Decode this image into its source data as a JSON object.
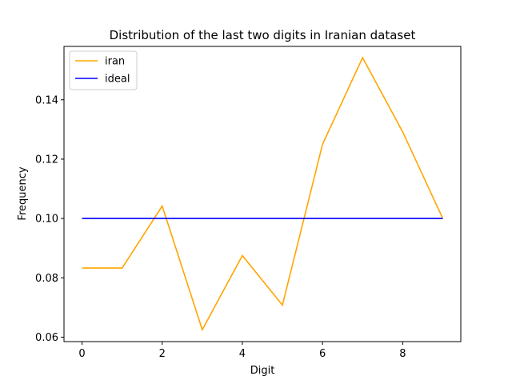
{
  "chart_data": {
    "type": "line",
    "title": "Distribution of the last two digits in Iranian dataset",
    "xlabel": "Digit",
    "ylabel": "Frequency",
    "x": [
      0,
      1,
      2,
      3,
      4,
      5,
      6,
      7,
      8,
      9
    ],
    "xlim": [
      -0.45,
      9.45
    ],
    "ylim": [
      0.0585,
      0.158
    ],
    "xticks": [
      0,
      2,
      4,
      6,
      8
    ],
    "yticks": [
      0.06,
      0.08,
      0.1,
      0.12,
      0.14
    ],
    "ytick_labels": [
      "0.06",
      "0.08",
      "0.10",
      "0.12",
      "0.14"
    ],
    "grid": false,
    "legend_position": "upper left",
    "series": [
      {
        "name": "iran",
        "color": "#ffa500",
        "values": [
          0.0833,
          0.0833,
          0.1042,
          0.0625,
          0.0875,
          0.0708,
          0.125,
          0.1542,
          0.1292,
          0.1
        ]
      },
      {
        "name": "ideal",
        "color": "#0000ff",
        "values": [
          0.1,
          0.1,
          0.1,
          0.1,
          0.1,
          0.1,
          0.1,
          0.1,
          0.1,
          0.1
        ]
      }
    ]
  }
}
